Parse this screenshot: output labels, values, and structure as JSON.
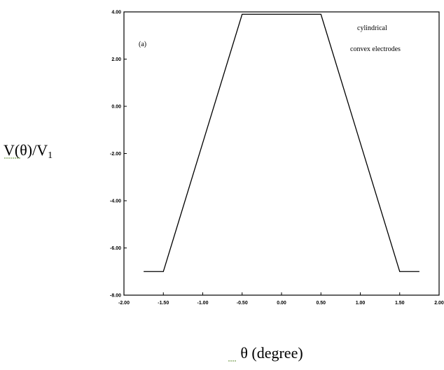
{
  "chart_data": {
    "type": "line",
    "xlabel": "θ (degree)",
    "ylabel_main": "V(θ)/V",
    "ylabel_sub": "1",
    "xlim": [
      -2.0,
      2.0
    ],
    "ylim": [
      -8.0,
      4.0
    ],
    "x_ticks": [
      -2.0,
      -1.5,
      -1.0,
      -0.5,
      0.0,
      0.5,
      1.0,
      1.5,
      2.0
    ],
    "x_tick_labels": [
      "-2.00",
      "-1.50",
      "-1.00",
      "-0.50",
      "0.00",
      "0.50",
      "1.00",
      "1.50",
      "2.00"
    ],
    "y_ticks": [
      4.0,
      2.0,
      0.0,
      -2.0,
      -4.0,
      -6.0,
      -8.0
    ],
    "y_tick_labels": [
      "4.00",
      "2.00",
      "0.00",
      "-2.00",
      "-4.00",
      "-6.00",
      "-8.00"
    ],
    "series": [
      {
        "x": [
          -1.75,
          -1.5,
          -0.5,
          0.5,
          1.5,
          1.75
        ],
        "y": [
          -7.0,
          -7.0,
          3.9,
          3.9,
          -7.0,
          -7.0
        ]
      }
    ],
    "annotations": {
      "panel_label": "(a)",
      "note_line1": "cylindrical",
      "note_line2": "convex electrodes"
    },
    "grid": false,
    "color": "#000000"
  }
}
